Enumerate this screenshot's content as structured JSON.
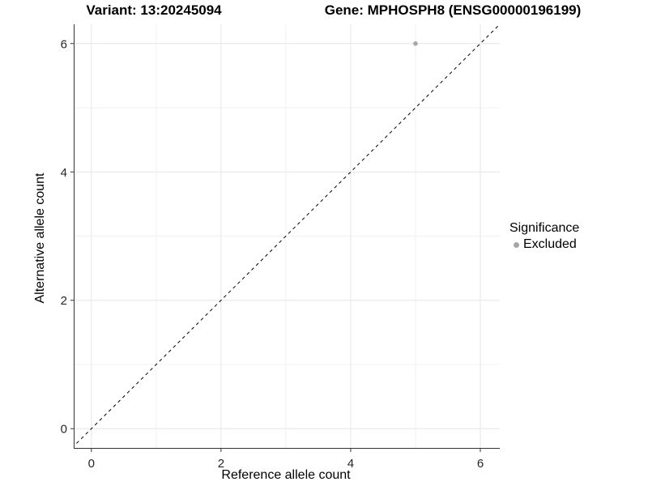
{
  "header": {
    "title_left": "Variant: 13:20245094",
    "title_right": "Gene: MPHOSPH8 (ENSG00000196199)"
  },
  "chart_data": {
    "type": "scatter",
    "title_left": "Variant: 13:20245094",
    "title_right": "Gene: MPHOSPH8 (ENSG00000196199)",
    "xlabel": "Reference allele count",
    "ylabel": "Alternative allele count",
    "xlim": [
      -0.26,
      6.3
    ],
    "ylim": [
      -0.3,
      6.3
    ],
    "x_ticks": [
      0,
      2,
      4,
      6
    ],
    "y_ticks": [
      0,
      2,
      4,
      6
    ],
    "x_minor_ticks": [
      1,
      3,
      5
    ],
    "y_minor_ticks": [
      1,
      3,
      5
    ],
    "grid": "major+minor",
    "identity_line": {
      "style": "dashed",
      "x1": -0.3,
      "y1": -0.3,
      "x2": 6.3,
      "y2": 6.3
    },
    "series": [
      {
        "name": "Excluded",
        "color": "#a6a6a6",
        "points": [
          {
            "x": 5,
            "y": 6
          }
        ]
      }
    ],
    "legend": {
      "title": "Significance",
      "position": "right",
      "entries": [
        {
          "label": "Excluded",
          "color": "#a6a6a6"
        }
      ]
    },
    "colors": {
      "background": "#ffffff",
      "grid_major": "#e6e6e6",
      "grid_minor": "#f1f1f1",
      "axis_line": "#333333",
      "tick_mark": "#333333",
      "tick_label": "#262626",
      "identity_line": "#000000",
      "point": "#a6a6a6"
    }
  }
}
